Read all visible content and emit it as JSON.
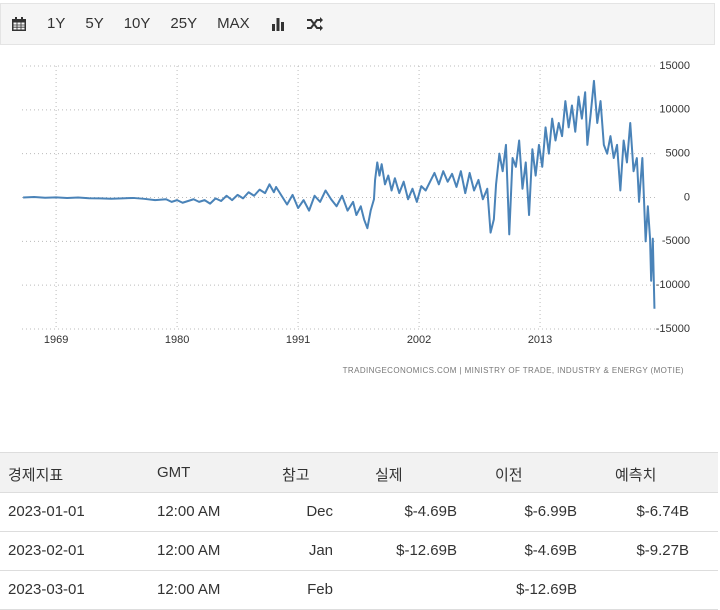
{
  "toolbar": {
    "ranges": [
      "1Y",
      "5Y",
      "10Y",
      "25Y",
      "MAX"
    ]
  },
  "chart_data": {
    "type": "line",
    "color": "#4a83b8",
    "grid": true,
    "source": "TRADINGECONOMICS.COM | MINISTRY OF TRADE, INDUSTRY & ENERGY (MOTIE)",
    "xlim": [
      1965.9,
      2023.45
    ],
    "xticks": [
      1969,
      1980,
      1991,
      2002,
      2013
    ],
    "ylim": [
      -15000,
      15000
    ],
    "yticks": [
      15000,
      10000,
      5000,
      0,
      -5000,
      -10000,
      -15000
    ],
    "x": [
      1966,
      1967,
      1968,
      1969,
      1970,
      1971,
      1972,
      1973,
      1974,
      1975,
      1976,
      1977,
      1978,
      1979,
      1979.5,
      1980,
      1980.5,
      1981,
      1981.5,
      1982,
      1982.5,
      1983,
      1983.5,
      1984,
      1984.5,
      1985,
      1985.5,
      1986,
      1986.5,
      1987,
      1987.5,
      1988,
      1988.4,
      1988.8,
      1989,
      1989.5,
      1990,
      1990.5,
      1991,
      1991.5,
      1992,
      1992.5,
      1993,
      1993.5,
      1994,
      1994.5,
      1995,
      1995.5,
      1996,
      1996.3,
      1996.7,
      1997,
      1997.3,
      1997.6,
      1997.9,
      1998,
      1998.2,
      1998.4,
      1998.6,
      1998.9,
      1999.2,
      1999.5,
      1999.8,
      2000.2,
      2000.6,
      2001,
      2001.4,
      2001.8,
      2002.2,
      2002.6,
      2003,
      2003.4,
      2003.8,
      2004.2,
      2004.6,
      2005,
      2005.4,
      2005.8,
      2006.2,
      2006.6,
      2007,
      2007.4,
      2007.8,
      2008.2,
      2008.5,
      2008.8,
      2009,
      2009.3,
      2009.6,
      2009.9,
      2010.2,
      2010.5,
      2010.8,
      2011.1,
      2011.4,
      2011.7,
      2012,
      2012.3,
      2012.6,
      2012.9,
      2013.2,
      2013.5,
      2013.8,
      2014.1,
      2014.4,
      2014.7,
      2015,
      2015.3,
      2015.6,
      2015.9,
      2016.2,
      2016.5,
      2016.8,
      2017.1,
      2017.3,
      2017.6,
      2017.9,
      2018.2,
      2018.5,
      2018.8,
      2019.1,
      2019.4,
      2019.7,
      2020,
      2020.3,
      2020.6,
      2020.9,
      2021.2,
      2021.5,
      2021.8,
      2022,
      2022.3,
      2022.6,
      2022.8,
      2023,
      2023.1,
      2023.25,
      2023.4
    ],
    "values": [
      0,
      50,
      -30,
      20,
      -50,
      0,
      -80,
      -100,
      -150,
      -100,
      -50,
      -150,
      -300,
      -200,
      -500,
      -300,
      -600,
      -400,
      -200,
      -500,
      -300,
      -700,
      -100,
      -400,
      200,
      -300,
      300,
      -100,
      600,
      200,
      900,
      500,
      1500,
      600,
      1200,
      200,
      -800,
      300,
      -1200,
      -300,
      -1500,
      200,
      -500,
      800,
      -200,
      -1000,
      200,
      -1500,
      -500,
      -2000,
      -1000,
      -2500,
      -3500,
      -1500,
      -200,
      2000,
      4000,
      2500,
      3800,
      1500,
      2500,
      800,
      2200,
      500,
      1800,
      -200,
      1000,
      -500,
      1300,
      800,
      1800,
      2800,
      1500,
      3000,
      1800,
      2700,
      1200,
      3000,
      500,
      2800,
      800,
      2000,
      -200,
      1000,
      -4000,
      -2500,
      1500,
      5000,
      3000,
      6000,
      -4200,
      4500,
      3500,
      6500,
      1000,
      4000,
      -2000,
      5500,
      2500,
      6000,
      3500,
      8000,
      5000,
      9000,
      6500,
      8500,
      7000,
      11000,
      8000,
      10500,
      7500,
      11500,
      9000,
      12000,
      6000,
      9500,
      13300,
      8500,
      11000,
      6000,
      5000,
      7000,
      4500,
      6000,
      800,
      6500,
      4000,
      8500,
      3000,
      4500,
      -500,
      4500,
      -5000,
      -1000,
      -4690,
      -9500,
      -4690,
      -12690
    ]
  },
  "table": {
    "header": [
      "경제지표",
      "GMT",
      "참고",
      "실제",
      "이전",
      "예측치"
    ],
    "rows": [
      {
        "date": "2023-01-01",
        "time": "12:00 AM",
        "reference": "Dec",
        "actual": "$-4.69B",
        "previous": "$-6.99B",
        "forecast": "$-6.74B"
      },
      {
        "date": "2023-02-01",
        "time": "12:00 AM",
        "reference": "Jan",
        "actual": "$-12.69B",
        "previous": "$-4.69B",
        "forecast": "$-9.27B"
      },
      {
        "date": "2023-03-01",
        "time": "12:00 AM",
        "reference": "Feb",
        "previous": "$-12.69B"
      }
    ]
  }
}
